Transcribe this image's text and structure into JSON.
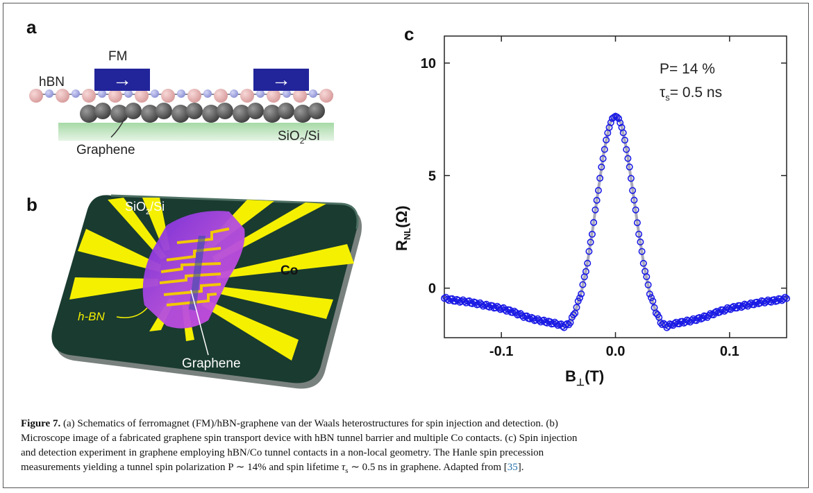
{
  "panels": {
    "a": {
      "letter": "a",
      "fm_label": "FM",
      "hbn_label": "hBN",
      "substrate_label_main": "SiO",
      "substrate_label_sub": "2",
      "substrate_label_rest": "/Si",
      "graphene_label": "Graphene",
      "arrow_glyph": "→"
    },
    "b": {
      "letter": "b",
      "substrate_label_main": "SiO",
      "substrate_label_sub": "2",
      "substrate_label_rest": "/Si",
      "co_label": "Co",
      "hbn_label": "h-BN",
      "graphene_label": "Graphene"
    },
    "c": {
      "letter": "c",
      "annotation_p": "P= 14 %",
      "annotation_tau_main": "τ",
      "annotation_tau_sub": "s",
      "annotation_tau_rest": "= 0.5 ns",
      "ylabel_main": "R",
      "ylabel_sub": "NL",
      "ylabel_rest": "(Ω)",
      "xlabel_main": "B",
      "xlabel_sub": "⊥",
      "xlabel_rest": "(T)"
    }
  },
  "chart_data": {
    "type": "scatter",
    "title": "",
    "xlabel": "B⊥(T)",
    "ylabel": "RNL(Ω)",
    "xlim": [
      -0.15,
      0.15
    ],
    "ylim": [
      -2.2,
      11.2
    ],
    "xticks": [
      -0.1,
      0.0,
      0.1
    ],
    "xtick_labels": [
      "-0.1",
      "0.0",
      "0.1"
    ],
    "yticks": [
      0,
      5,
      10
    ],
    "ytick_labels": [
      "0",
      "5",
      "10"
    ],
    "marker_color": "#1a1ae6",
    "fit_color": "#a8a8b8",
    "series": [
      {
        "x": [
          -0.15,
          -0.14,
          -0.13,
          -0.12,
          -0.11,
          -0.1,
          -0.09,
          -0.08,
          -0.07,
          -0.06,
          -0.05,
          -0.045,
          -0.04,
          -0.035,
          -0.03,
          -0.025,
          -0.02,
          -0.015,
          -0.01,
          -0.005,
          0.0,
          0.005,
          0.01,
          0.015,
          0.02,
          0.025,
          0.03,
          0.035,
          0.04,
          0.045,
          0.05,
          0.06,
          0.07,
          0.08,
          0.09,
          0.1,
          0.11,
          0.12,
          0.13,
          0.14,
          0.15
        ],
        "y": [
          -0.45,
          -0.55,
          -0.6,
          -0.7,
          -0.8,
          -0.9,
          -1.05,
          -1.25,
          -1.4,
          -1.5,
          -1.6,
          -1.7,
          -1.55,
          -1.0,
          -0.2,
          1.0,
          2.6,
          4.4,
          6.1,
          7.3,
          7.7,
          7.3,
          6.1,
          4.4,
          2.6,
          1.0,
          -0.2,
          -1.0,
          -1.55,
          -1.7,
          -1.6,
          -1.5,
          -1.4,
          -1.25,
          -1.05,
          -0.9,
          -0.8,
          -0.7,
          -0.6,
          -0.55,
          -0.45
        ]
      }
    ]
  },
  "caption": {
    "label": "Figure 7.",
    "line1": " (a) Schematics of ferromagnet (FM)/hBN-graphene van der Waals heterostructures for spin injection and detection. (b)",
    "line2": "Microscope image of a fabricated graphene spin transport device with hBN tunnel barrier and multiple Co contacts. (c) Spin injection",
    "line3": "and detection experiment in graphene employing hBN/Co tunnel contacts in a non-local geometry. The Hanle spin precession",
    "line4a": "measurements yielding a tunnel spin polarization P ∼ 14% and spin lifetime ",
    "line4_tau": "τ",
    "line4_tau_sub": "s",
    "line4b": " ∼ 0.5  ns in graphene. Adapted from [",
    "line4_ref": "35",
    "line4c": "]."
  }
}
